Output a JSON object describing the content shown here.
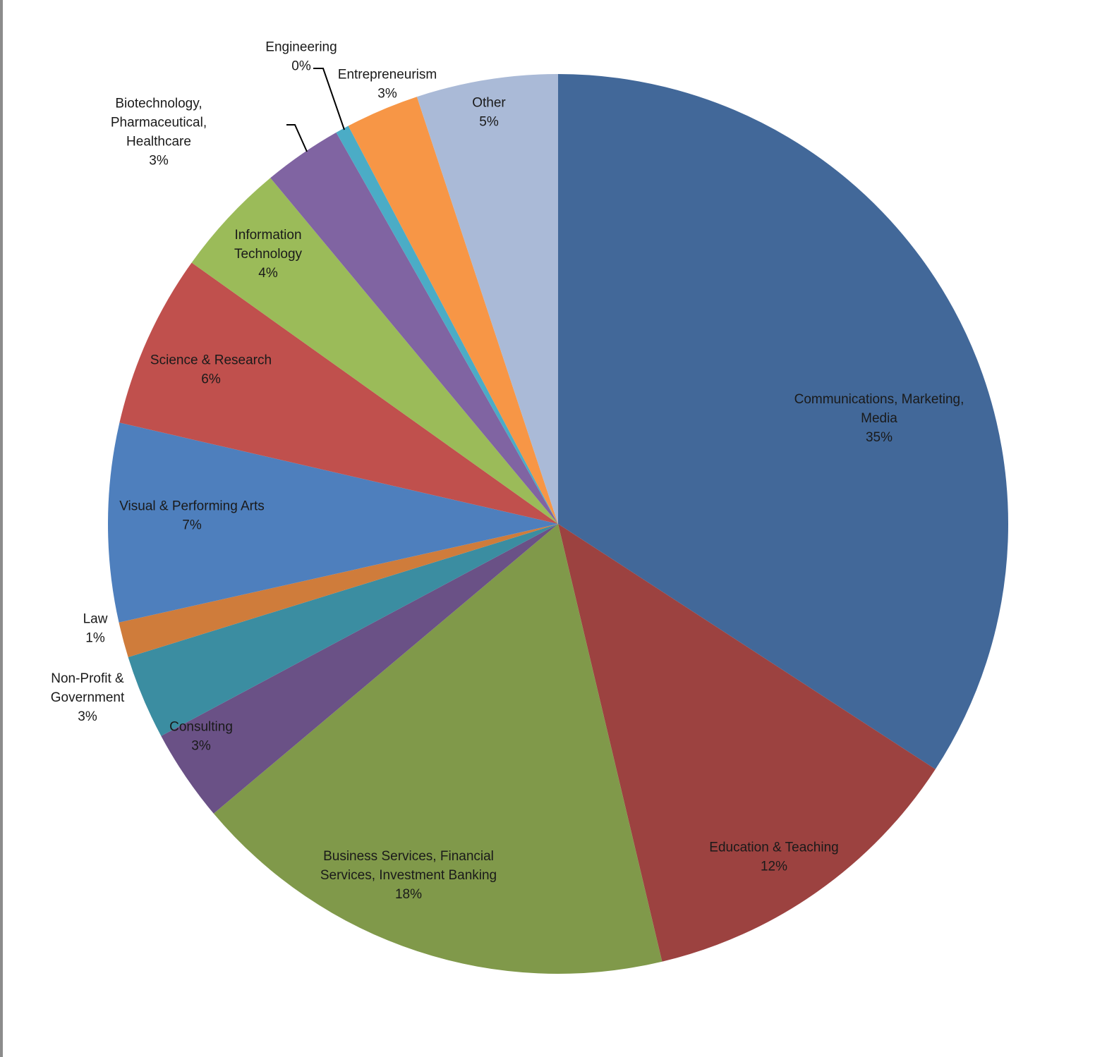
{
  "chart_data": {
    "type": "pie",
    "start_angle_deg": 0,
    "direction": "clockwise",
    "slices": [
      {
        "label": [
          "Communications, Marketing,",
          "Media"
        ],
        "pct_label": "35%",
        "value": 35.0,
        "color": "#426899"
      },
      {
        "label": [
          "Education & Teaching"
        ],
        "pct_label": "12%",
        "value": 12.4,
        "color": "#9c4240"
      },
      {
        "label": [
          "Business Services, Financial",
          "Services, Investment Banking"
        ],
        "pct_label": "18%",
        "value": 18.0,
        "color": "#80994a"
      },
      {
        "label": [
          "Consulting"
        ],
        "pct_label": "3%",
        "value": 3.4,
        "color": "#6a5186"
      },
      {
        "label": [
          "Non-Profit &",
          "Government"
        ],
        "pct_label": "3%",
        "value": 3.1,
        "color": "#3b8da1"
      },
      {
        "label": [
          "Law"
        ],
        "pct_label": "1%",
        "value": 1.3,
        "color": "#cf7c3b"
      },
      {
        "label": [
          "Visual & Performing Arts"
        ],
        "pct_label": "7%",
        "value": 7.3,
        "color": "#4e7fbd"
      },
      {
        "label": [
          "Science & Research"
        ],
        "pct_label": "6%",
        "value": 6.4,
        "color": "#c0504d"
      },
      {
        "label": [
          "Information",
          "Technology"
        ],
        "pct_label": "4%",
        "value": 4.2,
        "color": "#9bbb59"
      },
      {
        "label": [
          "Biotechnology,",
          "Pharmaceutical,",
          "Healthcare"
        ],
        "pct_label": "3%",
        "value": 2.9,
        "color": "#8064a2"
      },
      {
        "label": [
          "Engineering"
        ],
        "pct_label": "0%",
        "value": 0.5,
        "color": "#4bacc6"
      },
      {
        "label": [
          "Entrepreneurism"
        ],
        "pct_label": "3%",
        "value": 2.7,
        "color": "#f79646"
      },
      {
        "label": [
          "Other"
        ],
        "pct_label": "5%",
        "value": 5.2,
        "color": "#aabad7"
      }
    ]
  }
}
